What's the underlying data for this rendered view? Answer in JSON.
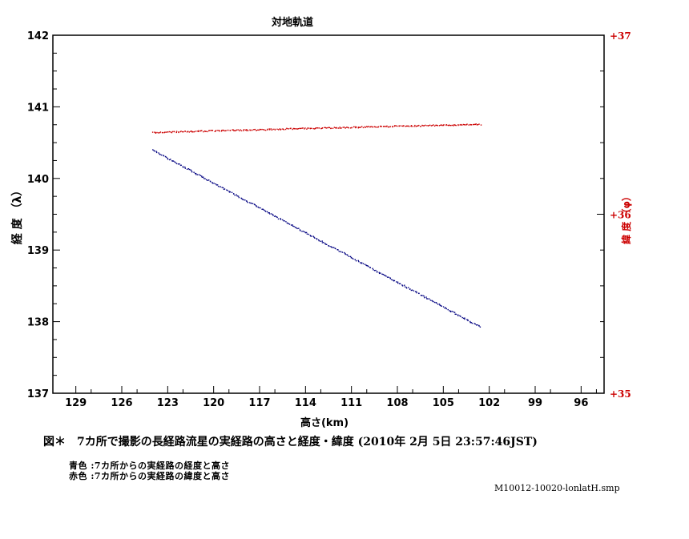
{
  "chart_data": {
    "type": "scatter",
    "title": "対地軌道",
    "xlabel": "高さ(km)",
    "ylabel": "経 度 （λ）",
    "y2label": "緯 度 （φ）",
    "xlim": [
      130.5,
      94.5
    ],
    "ylim": [
      137,
      142
    ],
    "y2lim": [
      35,
      37
    ],
    "x_ticks": [
      "129",
      "126",
      "123",
      "120",
      "117",
      "114",
      "111",
      "108",
      "105",
      "102",
      "99",
      "96"
    ],
    "y_ticks": [
      "137",
      "138",
      "139",
      "140",
      "141",
      "142"
    ],
    "y2_ticks": [
      "+35",
      "+36",
      "+37"
    ],
    "series": [
      {
        "name": "経度",
        "axis": "left",
        "color": "#000080",
        "x_start": 124.0,
        "x_end": 102.6,
        "y_start": 140.4,
        "y_end": 137.93
      },
      {
        "name": "緯度",
        "axis": "right",
        "color": "#cc0000",
        "x_start": 124.0,
        "x_end": 102.6,
        "y_start": 36.465,
        "y_end": 36.505
      }
    ]
  },
  "caption": "図＊　7カ所で撮影の長経路流星の実経路の高さと経度・緯度 (2010年 2月 5日 23:57:46JST)",
  "legend": {
    "blue": "青色 :7カ所からの実経路の経度と高さ",
    "red": "赤色 :7カ所からの実経路の緯度と高さ"
  },
  "file_name": "M10012-10020-lonlatH.smp",
  "colors": {
    "blue": "#000080",
    "red": "#cc0000"
  }
}
